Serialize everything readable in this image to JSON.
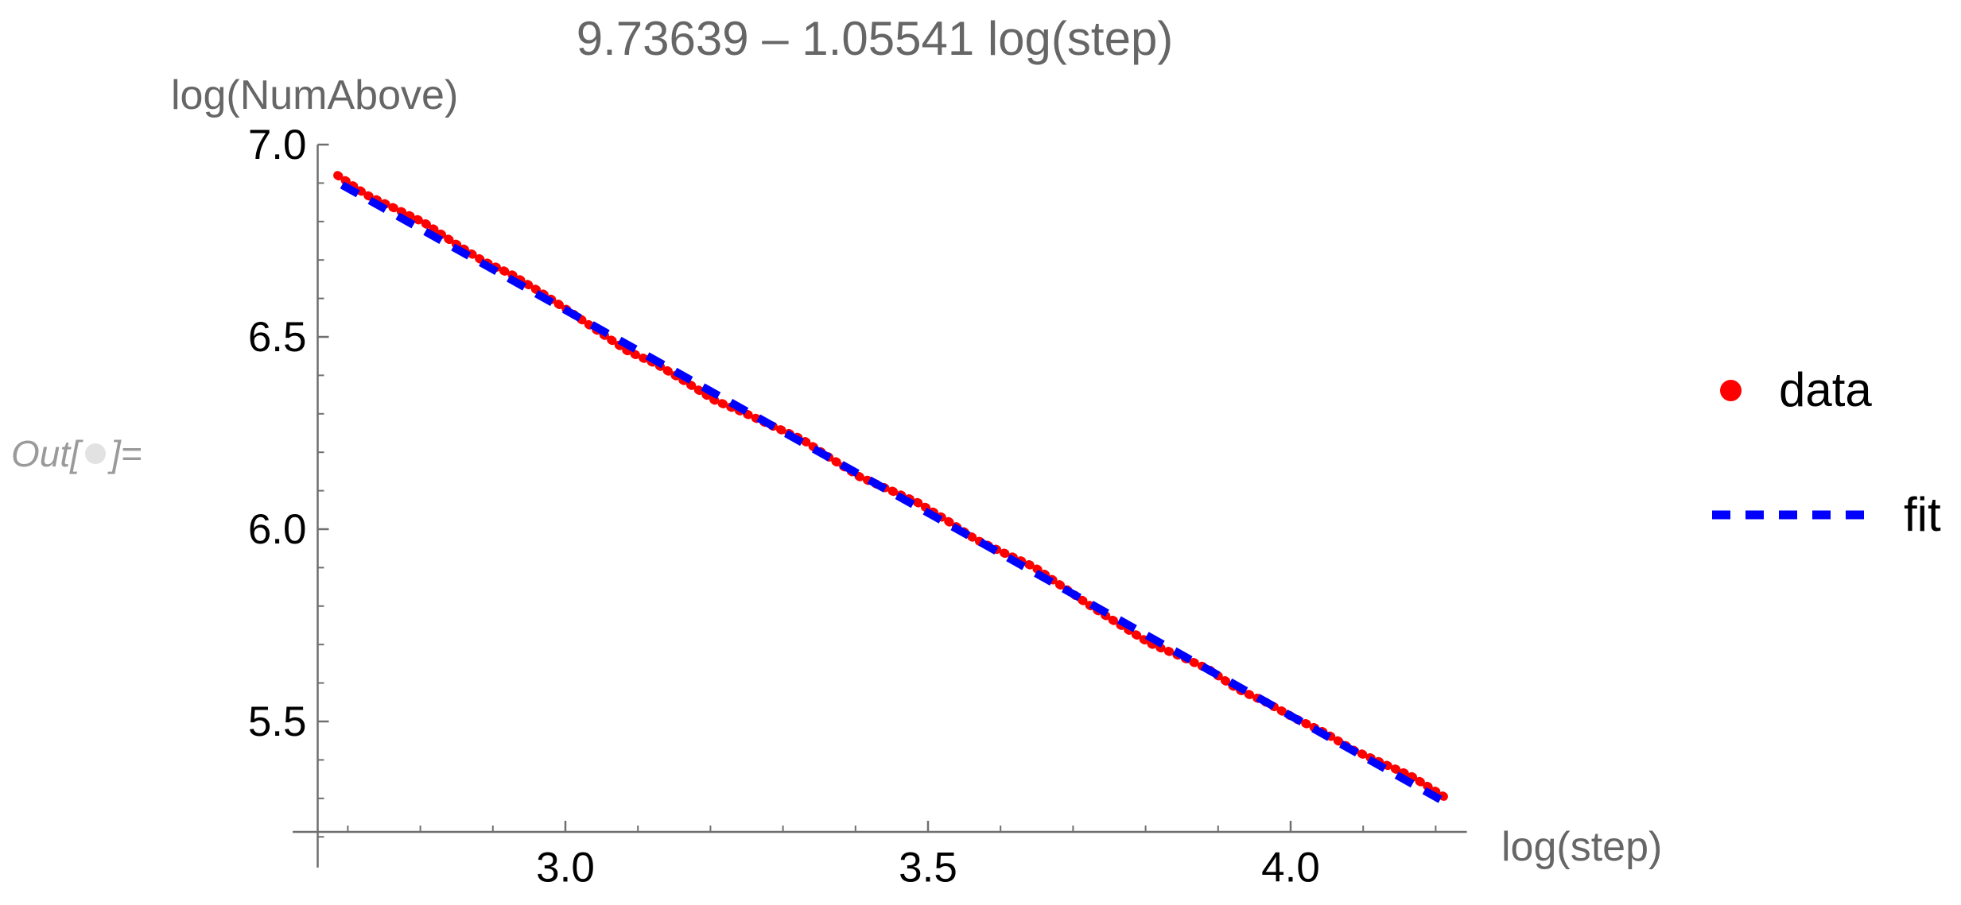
{
  "output_label": {
    "prefix": "Out[",
    "suffix": "]="
  },
  "colors": {
    "background": "#ffffff",
    "axis": "#6f6f6f",
    "tick_text": "#000000",
    "label_text": "#666666",
    "out_label": "#9a9a9a",
    "out_dot": "#e2e2e2",
    "data_red": "#ff0000",
    "fit_blue": "#0000ff"
  },
  "chart_data": {
    "type": "scatter",
    "title": "9.73639 – 1.05541 log(step)",
    "xlabel": "log(step)",
    "ylabel": "log(NumAbove)",
    "grid": false,
    "legend_position": "right-outside",
    "x_axis_range": [
      2.624,
      4.243
    ],
    "y_axis_range": [
      5.12,
      7.0
    ],
    "x_ticks_major": [
      {
        "v": 3.0,
        "label": "3.0"
      },
      {
        "v": 3.5,
        "label": "3.5"
      },
      {
        "v": 4.0,
        "label": "4.0"
      }
    ],
    "x_ticks_minor": [
      2.7,
      2.8,
      2.9,
      3.1,
      3.2,
      3.3,
      3.4,
      3.6,
      3.7,
      3.8,
      3.9,
      4.1,
      4.2
    ],
    "y_ticks_major": [
      {
        "v": 5.5,
        "label": "5.5"
      },
      {
        "v": 6.0,
        "label": "6.0"
      },
      {
        "v": 6.5,
        "label": "6.5"
      },
      {
        "v": 7.0,
        "label": "7.0"
      }
    ],
    "y_ticks_minor": [
      5.2,
      5.3,
      5.4,
      5.6,
      5.7,
      5.8,
      5.9,
      6.1,
      6.2,
      6.3,
      6.4,
      6.6,
      6.7,
      6.8,
      6.9
    ],
    "series": [
      {
        "name": "data",
        "style": "points",
        "color": "#ff0000",
        "points": [
          [
            2.686,
            6.92
          ],
          [
            2.726,
            6.869
          ],
          [
            2.766,
            6.833
          ],
          [
            2.806,
            6.796
          ],
          [
            2.846,
            6.745
          ],
          [
            2.886,
            6.698
          ],
          [
            2.926,
            6.662
          ],
          [
            2.966,
            6.616
          ],
          [
            3.006,
            6.566
          ],
          [
            3.046,
            6.514
          ],
          [
            3.086,
            6.463
          ],
          [
            3.126,
            6.429
          ],
          [
            3.166,
            6.383
          ],
          [
            3.206,
            6.335
          ],
          [
            3.246,
            6.303
          ],
          [
            3.286,
            6.268
          ],
          [
            3.326,
            6.234
          ],
          [
            3.366,
            6.184
          ],
          [
            3.406,
            6.136
          ],
          [
            3.446,
            6.103
          ],
          [
            3.486,
            6.069
          ],
          [
            3.526,
            6.023
          ],
          [
            3.566,
            5.973
          ],
          [
            3.606,
            5.937
          ],
          [
            3.646,
            5.902
          ],
          [
            3.686,
            5.85
          ],
          [
            3.726,
            5.798
          ],
          [
            3.766,
            5.75
          ],
          [
            3.806,
            5.703
          ],
          [
            3.846,
            5.671
          ],
          [
            3.886,
            5.637
          ],
          [
            3.926,
            5.585
          ],
          [
            3.966,
            5.55
          ],
          [
            4.006,
            5.508
          ],
          [
            4.046,
            5.472
          ],
          [
            4.086,
            5.426
          ],
          [
            4.126,
            5.392
          ],
          [
            4.166,
            5.358
          ],
          [
            4.19,
            5.33
          ],
          [
            4.211,
            5.305
          ]
        ]
      },
      {
        "name": "fit",
        "style": "dashed-line",
        "color": "#0000ff",
        "formula": "9.73639 - 1.05541 x",
        "intercept": 9.73639,
        "slope": -1.05541,
        "x_range": [
          2.692,
          4.218
        ]
      }
    ],
    "legend": [
      {
        "label": "data",
        "marker": "point",
        "color": "#ff0000"
      },
      {
        "label": "fit",
        "marker": "dashed-line",
        "color": "#0000ff"
      }
    ]
  }
}
